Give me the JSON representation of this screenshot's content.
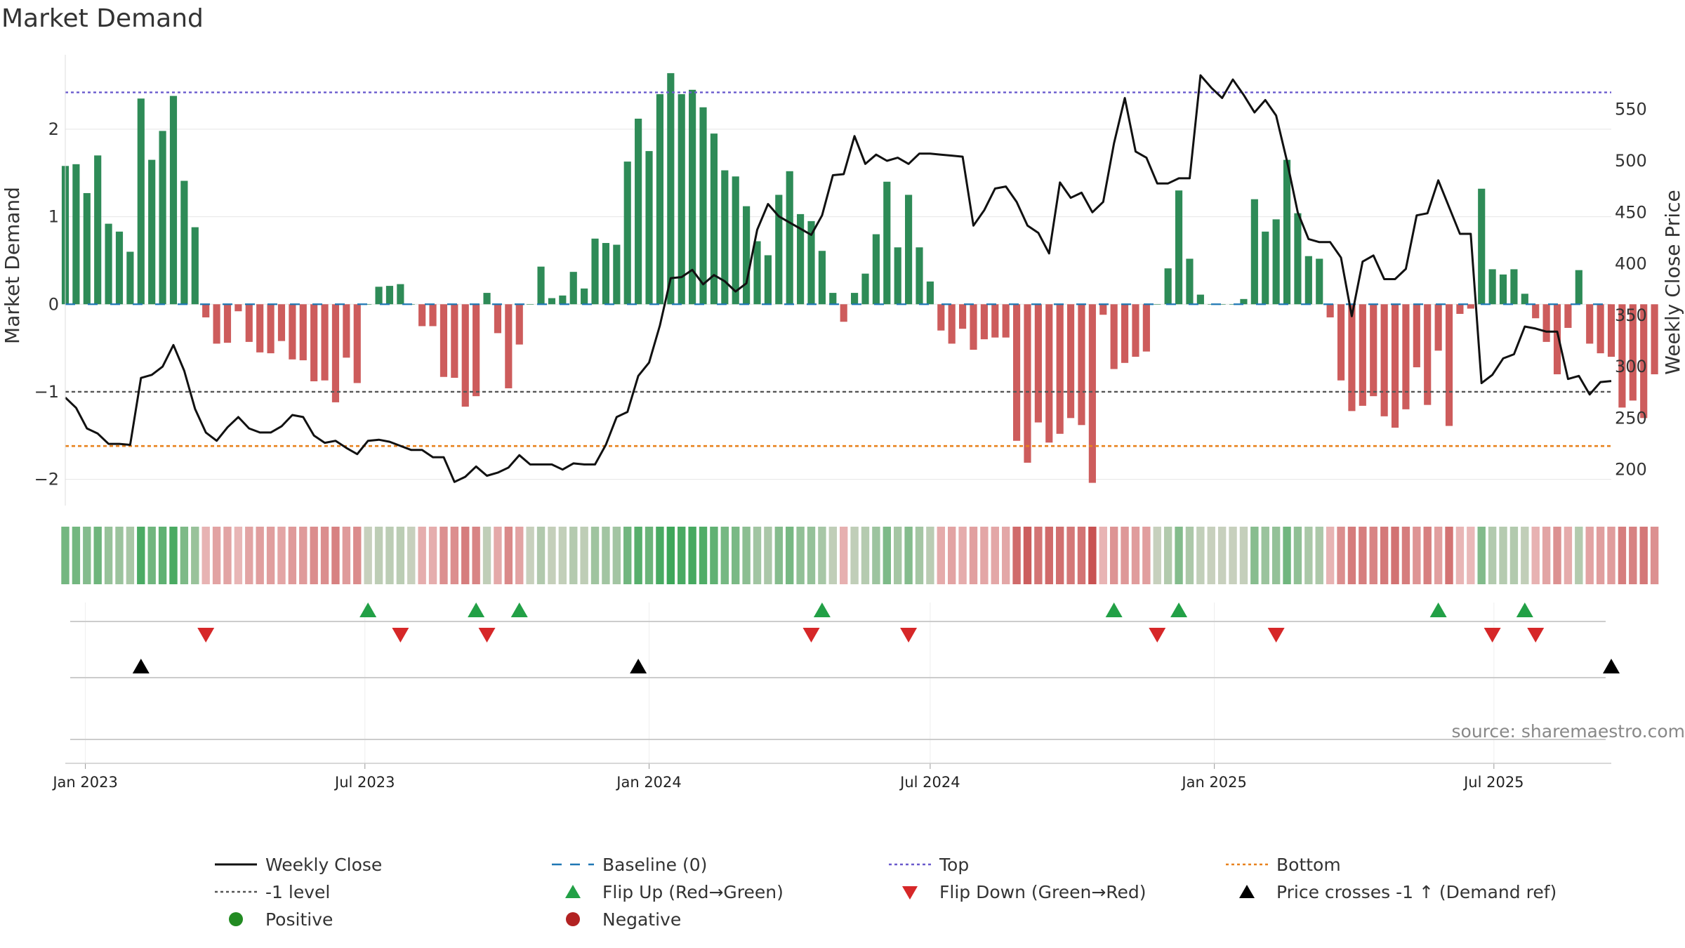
{
  "title": "Market Demand",
  "source": "source: sharemaestro.com",
  "colors": {
    "positive": "#2e8b57",
    "negative": "#cd5c5c",
    "close": "#111111",
    "top": "#6a5acd",
    "bottom": "#e8821e",
    "minus1": "#555555",
    "baseline": "#1f77b4",
    "flip_up": "#22a046",
    "flip_down": "#d62728",
    "cross": "#000000",
    "dot_positive": "#228b22",
    "dot_negative": "#b22222"
  },
  "chart_data": {
    "type": "bar",
    "title": "Market Demand",
    "ylabel": "Market Demand",
    "y2label": "Weekly Close Price",
    "ylim": [
      -2.3,
      2.85
    ],
    "y2lim": [
      165,
      603
    ],
    "yticks": [
      2,
      1,
      0,
      -1,
      -2
    ],
    "ytick_labels": [
      "2",
      "1",
      "0",
      "−1",
      "−2"
    ],
    "y2ticks": [
      550,
      500,
      450,
      400,
      350,
      300,
      250,
      200
    ],
    "x_start": "2022-12-19",
    "x_end": "2025-09-15",
    "x_ticks": [
      {
        "date": "2023-01-01",
        "label": "Jan 2023"
      },
      {
        "date": "2023-07-01",
        "label": "Jul 2023"
      },
      {
        "date": "2024-01-01",
        "label": "Jan 2024"
      },
      {
        "date": "2024-07-01",
        "label": "Jul 2024"
      },
      {
        "date": "2025-01-01",
        "label": "Jan 2025"
      },
      {
        "date": "2025-07-01",
        "label": "Jul 2025"
      }
    ],
    "series": [
      {
        "name": "Market Demand",
        "kind": "bar",
        "start": "2022-12-19",
        "step_days": 7,
        "values": [
          1.58,
          1.6,
          1.27,
          1.7,
          0.92,
          0.83,
          0.6,
          2.35,
          1.65,
          1.98,
          2.38,
          1.41,
          0.88,
          -0.15,
          -0.45,
          -0.44,
          -0.08,
          -0.43,
          -0.55,
          -0.56,
          -0.42,
          -0.63,
          -0.64,
          -0.88,
          -0.87,
          -1.12,
          -0.61,
          -0.9,
          0.0,
          0.2,
          0.21,
          0.23,
          0.0,
          -0.25,
          -0.25,
          -0.83,
          -0.84,
          -1.17,
          -1.05,
          0.13,
          -0.33,
          -0.96,
          -0.46,
          0.0,
          0.43,
          0.07,
          0.1,
          0.37,
          0.18,
          0.75,
          0.7,
          0.68,
          1.63,
          2.12,
          1.75,
          2.4,
          2.64,
          2.4,
          2.45,
          2.25,
          1.95,
          1.53,
          1.46,
          1.12,
          0.72,
          0.56,
          1.25,
          1.52,
          1.03,
          0.95,
          0.61,
          0.13,
          -0.2,
          0.13,
          0.35,
          0.8,
          1.4,
          0.65,
          1.25,
          0.65,
          0.26,
          -0.3,
          -0.45,
          -0.28,
          -0.52,
          -0.4,
          -0.38,
          -0.38,
          -1.56,
          -1.81,
          -1.35,
          -1.58,
          -1.48,
          -1.3,
          -1.38,
          -2.04,
          -0.12,
          -0.74,
          -0.67,
          -0.6,
          -0.54,
          0.0,
          0.41,
          1.3,
          0.52,
          0.11,
          0.0,
          0.0,
          0.0,
          0.06,
          1.2,
          0.83,
          0.97,
          1.65,
          1.04,
          0.55,
          0.52,
          -0.15,
          -0.87,
          -1.22,
          -1.16,
          -1.05,
          -1.28,
          -1.41,
          -1.2,
          -0.72,
          -1.15,
          -0.53,
          -1.39,
          -0.11,
          -0.05,
          1.32,
          0.4,
          0.34,
          0.4,
          0.12,
          -0.16,
          -0.43,
          -0.8,
          -0.27,
          0.39,
          -0.45,
          -0.56,
          -0.6,
          -1.18,
          -1.1,
          -1.3,
          -0.8
        ]
      },
      {
        "name": "Weekly Close",
        "kind": "line",
        "start": "2022-12-19",
        "step_days": 7,
        "values": [
          270,
          260,
          240,
          235,
          225,
          225,
          224,
          289,
          292,
          300,
          321,
          296,
          259,
          236,
          228,
          241,
          251,
          240,
          236,
          236,
          242,
          253,
          251,
          233,
          226,
          228,
          221,
          215,
          228,
          229,
          227,
          223,
          219,
          219,
          212,
          212,
          188,
          193,
          203,
          194,
          197,
          202,
          214,
          205,
          205,
          205,
          200,
          206,
          205,
          205,
          224,
          251,
          256,
          291,
          304,
          340,
          386,
          387,
          394,
          380,
          389,
          383,
          373,
          381,
          433,
          458,
          446,
          440,
          434,
          428,
          447,
          486,
          487,
          524,
          497,
          506,
          500,
          503,
          497,
          507,
          507,
          506,
          505,
          504,
          437,
          452,
          473,
          475,
          460,
          437,
          430,
          410,
          479,
          464,
          469,
          450,
          460,
          517,
          561,
          509,
          503,
          478,
          478,
          483,
          483,
          583,
          571,
          561,
          579,
          564,
          547,
          559,
          544,
          500,
          450,
          424,
          421,
          421,
          406,
          349,
          402,
          408,
          385,
          385,
          395,
          447,
          449,
          481,
          455,
          429,
          429,
          284,
          292,
          308,
          312,
          339,
          337,
          334,
          334,
          288,
          291,
          273,
          285,
          286
        ]
      },
      {
        "name": "Top",
        "kind": "hline",
        "value": 2.42
      },
      {
        "name": "Bottom",
        "kind": "hline",
        "value": -1.62
      },
      {
        "name": "-1 level",
        "kind": "hline",
        "value": -1
      },
      {
        "name": "Baseline (0)",
        "kind": "hline",
        "value": 0
      }
    ],
    "heat_strip": {
      "source": "Market Demand",
      "colors": [
        "#3ea75a",
        "#f5dede",
        "#c74f4f"
      ]
    },
    "flip_up_weeks": [
      28,
      38,
      42,
      70,
      97,
      103,
      127,
      135
    ],
    "flip_down_weeks": [
      13,
      31,
      39,
      69,
      78,
      101,
      112,
      132,
      136
    ],
    "demand_cross_weeks": [
      7,
      53,
      143
    ]
  },
  "legend": [
    {
      "label": "Weekly Close",
      "symbol": "line-solid",
      "color_key": "close"
    },
    {
      "label": "Baseline (0)",
      "symbol": "line-dash",
      "color_key": "baseline"
    },
    {
      "label": "Top",
      "symbol": "line-dot",
      "color_key": "top"
    },
    {
      "label": "Bottom",
      "symbol": "line-dot",
      "color_key": "bottom"
    },
    {
      "label": "-1 level",
      "symbol": "line-dot",
      "color_key": "minus1"
    },
    {
      "label": "Flip Up (Red→Green)",
      "symbol": "tri-up",
      "color_key": "flip_up"
    },
    {
      "label": "Flip Down (Green→Red)",
      "symbol": "tri-down",
      "color_key": "flip_down"
    },
    {
      "label": "Price crosses -1 ↑ (Demand ref)",
      "symbol": "tri-up",
      "color_key": "cross"
    },
    {
      "label": "Positive",
      "symbol": "dot",
      "color_key": "dot_positive"
    },
    {
      "label": "Negative",
      "symbol": "dot",
      "color_key": "dot_negative"
    }
  ]
}
